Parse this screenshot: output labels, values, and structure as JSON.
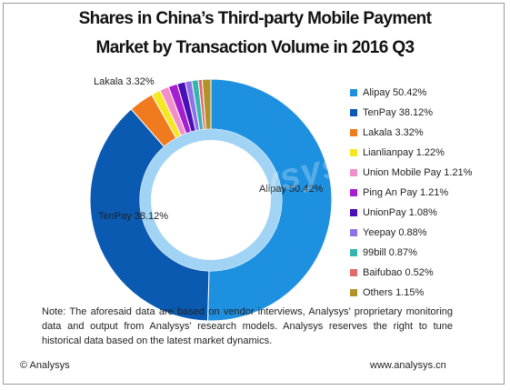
{
  "title_line1": "Shares in China’s Third-party Mobile Payment",
  "title_line2": "Market by Transaction Volume in 2016 Q3",
  "chart_data": {
    "type": "pie",
    "title": "Shares in China’s Third-party Mobile Payment Market by Transaction Volume in 2016 Q3",
    "unit": "%",
    "series": [
      {
        "name": "Alipay",
        "value": 50.42,
        "label": "50.42%",
        "color": "#1E90E0"
      },
      {
        "name": "TenPay",
        "value": 38.12,
        "label": "38.12%",
        "color": "#0A5AB2"
      },
      {
        "name": "Lakala",
        "value": 3.32,
        "label": "3.32%",
        "color": "#F07A1E"
      },
      {
        "name": "Lianlianpay",
        "value": 1.22,
        "label": "1.22%",
        "color": "#F5E820"
      },
      {
        "name": "Union Mobile Pay",
        "value": 1.21,
        "label": "1.21%",
        "color": "#F28FC8"
      },
      {
        "name": "Ping An Pay",
        "value": 1.21,
        "label": "1.21%",
        "color": "#A51FD0"
      },
      {
        "name": "UnionPay",
        "value": 1.08,
        "label": "1.08%",
        "color": "#4B0EB8"
      },
      {
        "name": "Yeepay",
        "value": 0.88,
        "label": "0.88%",
        "color": "#8E73E6"
      },
      {
        "name": "99bill",
        "value": 0.87,
        "label": "0.87%",
        "color": "#36B5B0"
      },
      {
        "name": "Baifubao",
        "value": 0.52,
        "label": "0.52%",
        "color": "#E06B6B"
      },
      {
        "name": "Others",
        "value": 1.15,
        "label": "1.15%",
        "color": "#B0932B"
      }
    ],
    "inner_ring_color": "#8FCBF2",
    "slice_labels": [
      {
        "series": "Alipay",
        "text": "Alipay  50.42%"
      },
      {
        "series": "TenPay",
        "text": "TenPay  38.12%"
      },
      {
        "series": "Lakala",
        "text": "Lakala  3.32%"
      }
    ],
    "legend_position": "right"
  },
  "watermark": "Analysys",
  "note": "Note: The aforesaid data are based on vendor interviews, Analysys’ proprietary monitoring data and output from Analysys’  research models. Analysys reserves the right to tune historical data based on the latest market dynamics.",
  "footer": {
    "copyright": "© Analysys",
    "website": "www.analysys.cn"
  }
}
